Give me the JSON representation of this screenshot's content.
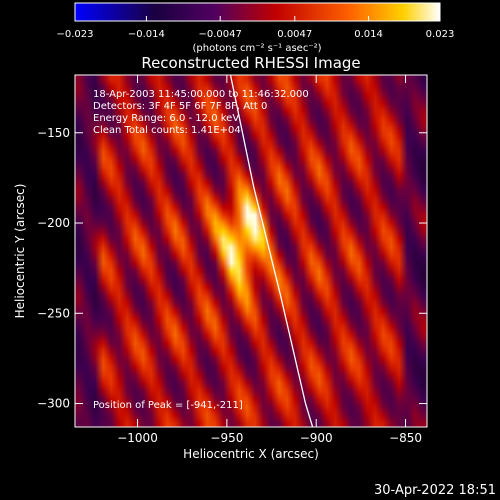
{
  "chart_data": {
    "type": "heatmap",
    "title": "Reconstructed RHESSI Image",
    "xlabel": "Heliocentric X (arcsec)",
    "ylabel": "Heliocentric Y (arcsec)",
    "xlim": [
      -1035,
      -838
    ],
    "ylim": [
      -313,
      -118
    ],
    "xticks": [
      -1000,
      -950,
      -900,
      -850
    ],
    "xtick_labels": [
      "−1000",
      "−950",
      "−900",
      "−850"
    ],
    "yticks": [
      -150,
      -200,
      -250,
      -300
    ],
    "ytick_labels": [
      "−150",
      "−200",
      "−250",
      "−300"
    ],
    "colorbar": {
      "range": [
        -0.023,
        0.023
      ],
      "ticks": [
        -0.023,
        -0.014,
        -0.0047,
        0.0047,
        0.014,
        0.023
      ],
      "tick_labels": [
        "−0.023",
        "−0.014",
        "−0.0047",
        "0.0047",
        "0.014",
        "0.023"
      ],
      "units_label": "(photons cm⁻² s⁻¹ asec⁻²)",
      "colors": [
        "#0000ff",
        "#1a0040",
        "#500060",
        "#c00000",
        "#ff6000",
        "#ffd000",
        "#ffffff"
      ]
    },
    "peak": {
      "x": -941,
      "y": -211
    },
    "annotations": {
      "time_range": "18-Apr-2003 11:45:00.000 to 11:46:32.000",
      "detectors": "Detectors: 3F 4F 5F 6F 7F 8F, Att 0",
      "energy": "Energy Range: 6.0 - 12.0 keV",
      "clean": "Clean     Total counts: 1.41E+04",
      "peak_label": "Position of Peak = [-941,-211]"
    },
    "limb": [
      [
        -948,
        -118
      ],
      [
        -935,
        -180
      ],
      [
        -920,
        -240
      ],
      [
        -906,
        -300
      ],
      [
        -902,
        -313
      ]
    ]
  },
  "footer": {
    "date": "30-Apr-2022 18:51"
  }
}
